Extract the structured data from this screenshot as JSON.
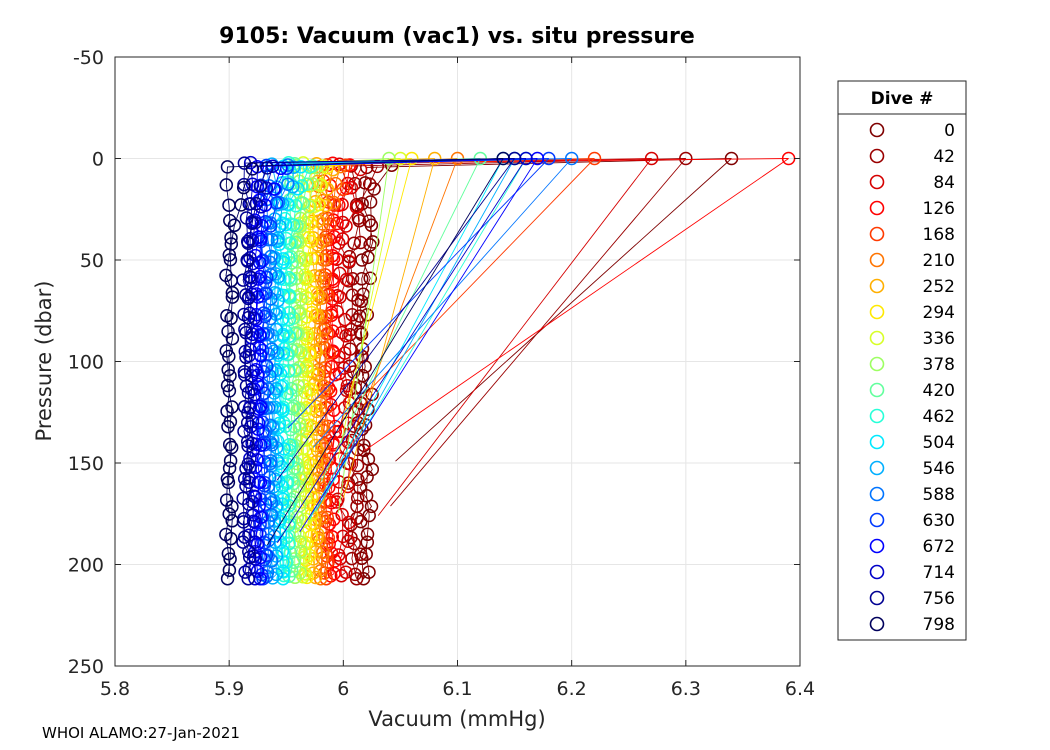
{
  "chart_data": {
    "type": "scatter",
    "title": "9105: Vacuum (vac1) vs. situ pressure",
    "xlabel": "Vacuum (mmHg)",
    "ylabel": "Pressure (dbar)",
    "xlim": [
      5.8,
      6.4
    ],
    "ylim": [
      -50,
      250
    ],
    "y_reversed": true,
    "x_ticks": [
      5.8,
      5.9,
      6.0,
      6.1,
      6.2,
      6.3,
      6.4
    ],
    "x_tick_labels": [
      "5.8",
      "5.9",
      "6",
      "6.1",
      "6.2",
      "6.3",
      "6.4"
    ],
    "y_ticks": [
      -50,
      0,
      50,
      100,
      150,
      200,
      250
    ],
    "y_tick_labels": [
      "-50",
      "0",
      "50",
      "100",
      "150",
      "200",
      "250"
    ],
    "grid": true,
    "legend_title": "Dive #",
    "legend_position": "right-outside",
    "series": [
      {
        "name": "0",
        "color": "#7f0000",
        "surface_vac": 6.34,
        "bottom_vac": 6.02
      },
      {
        "name": "42",
        "color": "#9a0000",
        "surface_vac": 6.3,
        "bottom_vac": 6.01
      },
      {
        "name": "84",
        "color": "#d50000",
        "surface_vac": 6.27,
        "bottom_vac": 6.0
      },
      {
        "name": "126",
        "color": "#ff0000",
        "surface_vac": 6.39,
        "bottom_vac": 5.99
      },
      {
        "name": "168",
        "color": "#ff3a00",
        "surface_vac": 6.22,
        "bottom_vac": 5.985
      },
      {
        "name": "210",
        "color": "#ff7400",
        "surface_vac": 6.1,
        "bottom_vac": 5.98
      },
      {
        "name": "252",
        "color": "#ffaf00",
        "surface_vac": 6.08,
        "bottom_vac": 5.975
      },
      {
        "name": "294",
        "color": "#ffe900",
        "surface_vac": 6.06,
        "bottom_vac": 5.97
      },
      {
        "name": "336",
        "color": "#d8ff27",
        "surface_vac": 6.05,
        "bottom_vac": 5.965
      },
      {
        "name": "378",
        "color": "#9dff62",
        "surface_vac": 6.04,
        "bottom_vac": 5.96
      },
      {
        "name": "420",
        "color": "#62ff9d",
        "surface_vac": 6.12,
        "bottom_vac": 5.955
      },
      {
        "name": "462",
        "color": "#27ffd8",
        "surface_vac": 6.16,
        "bottom_vac": 5.95
      },
      {
        "name": "504",
        "color": "#00e9ff",
        "surface_vac": 6.14,
        "bottom_vac": 5.945
      },
      {
        "name": "546",
        "color": "#00afff",
        "surface_vac": 6.15,
        "bottom_vac": 5.94
      },
      {
        "name": "588",
        "color": "#0074ff",
        "surface_vac": 6.2,
        "bottom_vac": 5.935
      },
      {
        "name": "630",
        "color": "#003aff",
        "surface_vac": 6.18,
        "bottom_vac": 5.93
      },
      {
        "name": "672",
        "color": "#0000ff",
        "surface_vac": 6.17,
        "bottom_vac": 5.925
      },
      {
        "name": "714",
        "color": "#0000c8",
        "surface_vac": 6.16,
        "bottom_vac": 5.92
      },
      {
        "name": "756",
        "color": "#000092",
        "surface_vac": 6.15,
        "bottom_vac": 5.915
      },
      {
        "name": "798",
        "color": "#00005c",
        "surface_vac": 6.14,
        "bottom_vac": 5.9
      }
    ]
  },
  "footer": "WHOI ALAMO:27-Jan-2021"
}
